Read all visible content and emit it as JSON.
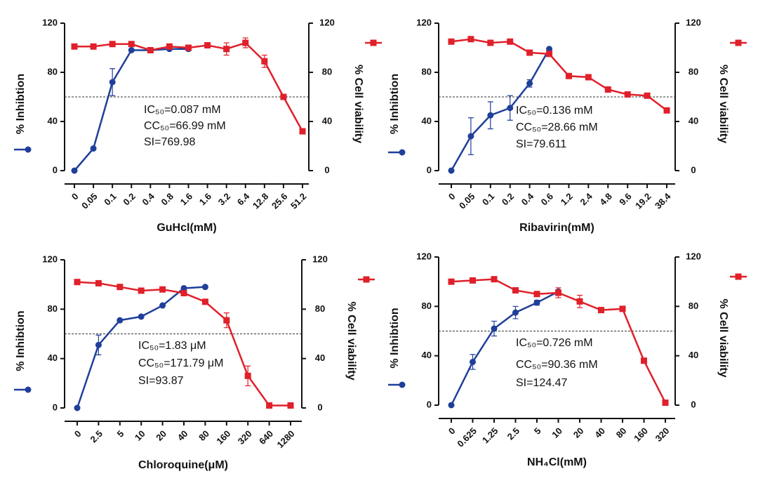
{
  "chart_data": [
    {
      "type": "line",
      "x_label": "GuHcl(mM)",
      "y_label": "% Inhibtion",
      "y2_label": "% Cell viability",
      "categories": [
        "0",
        "0.05",
        "0.1",
        "0.2",
        "0.4",
        "0.8",
        "1.6",
        "1.6",
        "3.2",
        "6.4",
        "12.8",
        "25.6",
        "51.2"
      ],
      "ylim": [
        0,
        120
      ],
      "yticks": [
        0,
        40,
        80,
        120
      ],
      "y2lim": [
        0,
        120
      ],
      "y2ticks": [
        0,
        40,
        80,
        120
      ],
      "reference_line": 60,
      "annotations": [
        "IC₅₀=0.087 mM",
        "CC₅₀=66.99 mM",
        "SI=769.98"
      ],
      "series": [
        {
          "color": "#1f3f9a",
          "marker": "circle",
          "values": [
            0,
            18,
            72,
            98,
            98,
            99,
            99,
            null,
            null,
            null,
            null,
            null,
            null
          ],
          "errors": [
            null,
            null,
            11,
            null,
            null,
            null,
            null,
            null,
            null,
            null,
            null,
            null,
            null
          ]
        },
        {
          "color": "#e0202a",
          "marker": "square",
          "axis": "y2",
          "values": [
            101,
            101,
            103,
            103,
            98,
            101,
            100,
            102,
            99,
            104,
            89,
            60,
            32
          ],
          "errors": [
            null,
            null,
            null,
            null,
            null,
            null,
            null,
            null,
            5,
            4,
            5,
            null,
            null
          ]
        }
      ]
    },
    {
      "type": "line",
      "x_label": "Ribavirin(mM)",
      "y_label": "% Inhibtion",
      "y2_label": "% Cell viability",
      "categories": [
        "0",
        "0.05",
        "0.1",
        "0.2",
        "0.4",
        "0.6",
        "1.2",
        "2.4",
        "4.8",
        "9.6",
        "19.2",
        "38.4"
      ],
      "ylim": [
        0,
        120
      ],
      "yticks": [
        0,
        40,
        80,
        120
      ],
      "y2lim": [
        0,
        120
      ],
      "y2ticks": [
        0,
        40,
        80,
        120
      ],
      "reference_line": 60,
      "annotations": [
        "IC₅₀=0.136 mM",
        "CC₅₀=28.66 mM",
        "SI=79.611"
      ],
      "series": [
        {
          "color": "#1f3f9a",
          "marker": "circle",
          "values": [
            0,
            28,
            45,
            51,
            71,
            99,
            null,
            null,
            null,
            null,
            null,
            null
          ],
          "errors": [
            null,
            15,
            11,
            10,
            3,
            null,
            null,
            null,
            null,
            null,
            null,
            null
          ]
        },
        {
          "color": "#e0202a",
          "marker": "square",
          "axis": "y2",
          "values": [
            105,
            107,
            104,
            105,
            96,
            95,
            77,
            76,
            66,
            62,
            61,
            49
          ],
          "errors": [
            null,
            null,
            null,
            null,
            null,
            null,
            null,
            null,
            null,
            null,
            null,
            null
          ]
        }
      ]
    },
    {
      "type": "line",
      "x_label": "Chloroquine(μM)",
      "y_label": "% Inhibtion",
      "y2_label": "% Cell viability",
      "categories": [
        "0",
        "2.5",
        "5",
        "10",
        "20",
        "40",
        "80",
        "160",
        "320",
        "640",
        "1280"
      ],
      "ylim": [
        0,
        120
      ],
      "yticks": [
        0,
        40,
        80,
        120
      ],
      "y2lim": [
        0,
        120
      ],
      "y2ticks": [
        0,
        40,
        80,
        120
      ],
      "reference_line": 60,
      "annotations": [
        "IC₅₀=1.83 μM",
        "CC₅₀=171.79 μM",
        "SI=93.87"
      ],
      "series": [
        {
          "color": "#1f3f9a",
          "marker": "circle",
          "values": [
            0,
            51,
            71,
            74,
            83,
            97,
            98,
            null,
            null,
            null,
            null
          ],
          "errors": [
            null,
            8,
            null,
            null,
            null,
            null,
            null,
            null,
            null,
            null,
            null
          ]
        },
        {
          "color": "#e0202a",
          "marker": "square",
          "axis": "y2",
          "values": [
            102,
            101,
            98,
            95,
            96,
            93,
            86,
            71,
            26,
            2,
            2
          ],
          "errors": [
            null,
            null,
            null,
            null,
            null,
            null,
            null,
            6,
            8,
            null,
            null
          ]
        }
      ]
    },
    {
      "type": "line",
      "x_label": "NH₄Cl(mM)",
      "y_label": "% Inhibtion",
      "y2_label": "% Cell viability",
      "categories": [
        "0",
        "0.625",
        "1.25",
        "2.5",
        "5",
        "10",
        "20",
        "40",
        "80",
        "160",
        "320"
      ],
      "ylim": [
        0,
        120
      ],
      "yticks": [
        0,
        40,
        80,
        120
      ],
      "y2lim": [
        0,
        120
      ],
      "y2ticks": [
        0,
        40,
        80,
        120
      ],
      "reference_line": 60,
      "annotations": [
        "IC₅₀=0.726 mM",
        "CC₅₀=90.36 mM",
        "SI=124.47"
      ],
      "series": [
        {
          "color": "#1f3f9a",
          "marker": "circle",
          "values": [
            0,
            35,
            62,
            75,
            83,
            92,
            null,
            null,
            null,
            null,
            null
          ],
          "errors": [
            null,
            6,
            6,
            5,
            2,
            3,
            null,
            null,
            null,
            null,
            null
          ]
        },
        {
          "color": "#e0202a",
          "marker": "square",
          "axis": "y2",
          "values": [
            100,
            101,
            102,
            93,
            90,
            91,
            84,
            77,
            78,
            36,
            2
          ],
          "errors": [
            null,
            null,
            null,
            null,
            null,
            4,
            5,
            null,
            null,
            null,
            null
          ]
        }
      ]
    }
  ]
}
